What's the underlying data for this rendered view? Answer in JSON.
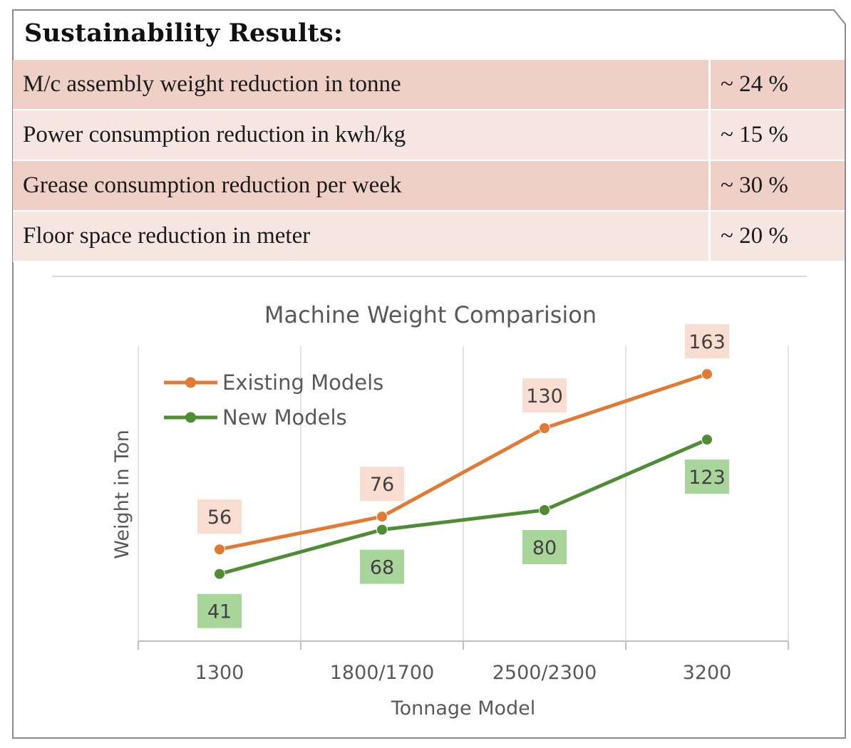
{
  "heading": "Sustainability Results:",
  "results": [
    {
      "label": "M/c assembly weight reduction in tonne",
      "value": "~ 24 %"
    },
    {
      "label": "Power consumption reduction in kwh/kg",
      "value": "~ 15 %"
    },
    {
      "label": "Grease consumption reduction per week",
      "value": "~ 30 %"
    },
    {
      "label": "Floor space reduction in meter",
      "value": "~ 20 %"
    }
  ],
  "chart_data": {
    "type": "line",
    "title": "Machine Weight Comparision",
    "xlabel": "Tonnage Model",
    "ylabel": "Weight in Ton",
    "categories": [
      "1300",
      "1800/1700",
      "2500/2300",
      "3200"
    ],
    "series": [
      {
        "name": "Existing Models",
        "values": [
          56,
          76,
          130,
          163
        ],
        "color": "#e07a35"
      },
      {
        "name": "New Models",
        "values": [
          41,
          68,
          80,
          123
        ],
        "color": "#4e8c35"
      }
    ],
    "ylim": [
      0,
      180
    ],
    "grid": "vertical",
    "legend_position": "top-left",
    "label_colors": {
      "Existing Models": "#f8ddd0",
      "New Models": "#a7d59a"
    }
  }
}
